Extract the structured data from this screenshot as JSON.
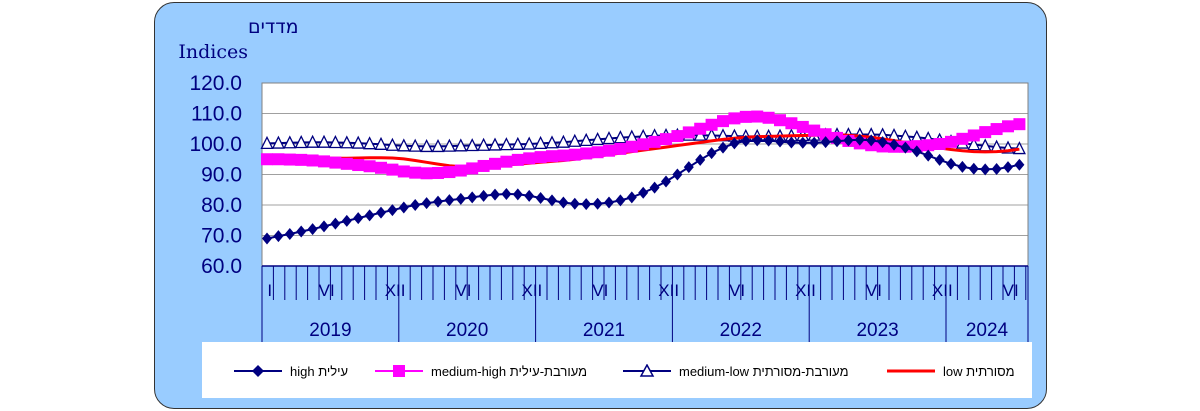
{
  "chart_data": {
    "type": "line",
    "ylabel_he": "מדדים",
    "ylabel_en": "Indices",
    "ylim": [
      60,
      120
    ],
    "yticks": [
      "120.0",
      "110.0",
      "100.0",
      "90.0",
      "80.0",
      "70.0",
      "60.0"
    ],
    "month_ticks": [
      "I",
      "VI",
      "XII",
      "VI",
      "XII",
      "VI",
      "XII",
      "VI",
      "XII",
      "VI",
      "XII",
      "VI"
    ],
    "years": [
      "2019",
      "2020",
      "2021",
      "2022",
      "2023",
      "2024"
    ],
    "x_start": "2019-01",
    "x_end": "2024-07",
    "series": [
      {
        "name": "עילית high",
        "color": "#000080",
        "marker": "diamond",
        "values": [
          69.0,
          69.8,
          70.5,
          71.3,
          72.1,
          73.0,
          73.9,
          74.8,
          75.7,
          76.6,
          77.5,
          78.3,
          79.2,
          80.0,
          80.6,
          81.1,
          81.6,
          82.0,
          82.5,
          83.0,
          83.4,
          83.6,
          83.5,
          83.0,
          82.3,
          81.5,
          80.8,
          80.4,
          80.3,
          80.4,
          80.8,
          81.5,
          82.5,
          84.0,
          85.7,
          87.7,
          90.0,
          92.4,
          94.8,
          97.0,
          98.8,
          100.2,
          101.0,
          101.2,
          101.1,
          100.8,
          100.5,
          100.4,
          100.4,
          100.6,
          100.9,
          101.2,
          101.4,
          101.2,
          100.6,
          99.8,
          98.8,
          97.6,
          96.2,
          94.8,
          93.5,
          92.5,
          91.9,
          91.7,
          91.8,
          92.4,
          93.2,
          94.0
        ]
      },
      {
        "name": "מעורבת-עילית medium-high",
        "color": "#ff00ff",
        "marker": "square",
        "values": [
          95.0,
          95.0,
          94.9,
          94.8,
          94.6,
          94.3,
          93.9,
          93.5,
          93.1,
          92.7,
          92.2,
          91.6,
          91.0,
          90.6,
          90.4,
          90.5,
          90.8,
          91.3,
          92.0,
          92.8,
          93.5,
          94.2,
          94.8,
          95.3,
          95.7,
          96.0,
          96.2,
          96.5,
          96.9,
          97.3,
          97.8,
          98.4,
          99.1,
          99.9,
          100.7,
          101.6,
          102.6,
          103.8,
          105.0,
          106.3,
          107.5,
          108.4,
          108.9,
          109.0,
          108.6,
          107.8,
          106.8,
          105.6,
          104.4,
          103.2,
          102.0,
          101.0,
          100.2,
          99.6,
          99.2,
          99.1,
          99.1,
          99.3,
          99.6,
          100.0,
          100.7,
          101.7,
          102.8,
          103.9,
          104.9,
          105.8,
          106.5,
          106.9,
          107.0,
          106.8,
          106.3
        ]
      },
      {
        "name": "מעורבת-מסורתית medium-low",
        "color": "#000080",
        "marker": "triangle",
        "values": [
          100.2,
          100.3,
          100.4,
          100.5,
          100.6,
          100.6,
          100.5,
          100.4,
          100.3,
          100.1,
          99.9,
          99.6,
          99.4,
          99.3,
          99.2,
          99.2,
          99.3,
          99.4,
          99.5,
          99.6,
          99.7,
          99.8,
          99.9,
          100.0,
          100.2,
          100.4,
          100.6,
          100.9,
          101.2,
          101.5,
          101.8,
          102.1,
          102.3,
          102.5,
          102.7,
          102.8,
          102.9,
          102.9,
          102.9,
          102.8,
          102.7,
          102.6,
          102.5,
          102.5,
          102.5,
          102.6,
          102.7,
          102.8,
          102.9,
          103.0,
          103.1,
          103.1,
          103.1,
          103.1,
          103.0,
          102.8,
          102.5,
          102.2,
          101.8,
          101.3,
          100.8,
          100.3,
          99.8,
          99.4,
          99.0,
          98.7,
          98.5,
          98.4,
          98.3,
          98.3,
          98.3
        ]
      },
      {
        "name": "מסורתית low",
        "color": "#ff0000",
        "marker": "none",
        "values": [
          95.3,
          95.4,
          95.5,
          95.5,
          95.5,
          95.4,
          95.3,
          95.3,
          95.4,
          95.5,
          95.5,
          95.4,
          95.1,
          94.6,
          94.0,
          93.4,
          92.9,
          92.6,
          92.5,
          92.6,
          92.8,
          93.1,
          93.4,
          93.7,
          94.0,
          94.3,
          94.6,
          95.0,
          95.5,
          96.0,
          96.5,
          97.0,
          97.5,
          98.0,
          98.5,
          99.0,
          99.5,
          100.0,
          100.5,
          101.0,
          101.5,
          101.9,
          102.2,
          102.4,
          102.5,
          102.6,
          102.7,
          102.8,
          102.9,
          103.0,
          103.0,
          102.9,
          102.6,
          102.2,
          101.7,
          101.1,
          100.5,
          99.9,
          99.3,
          98.7,
          98.2,
          97.8,
          97.5,
          97.4,
          97.5,
          97.8,
          98.3,
          98.9,
          99.4,
          99.8,
          100.2
        ]
      }
    ]
  },
  "legend": {
    "items": [
      "עילית high",
      "מעורבת-עילית medium-high",
      "מעורבת-מסורתית medium-low",
      "מסורתית low"
    ]
  }
}
